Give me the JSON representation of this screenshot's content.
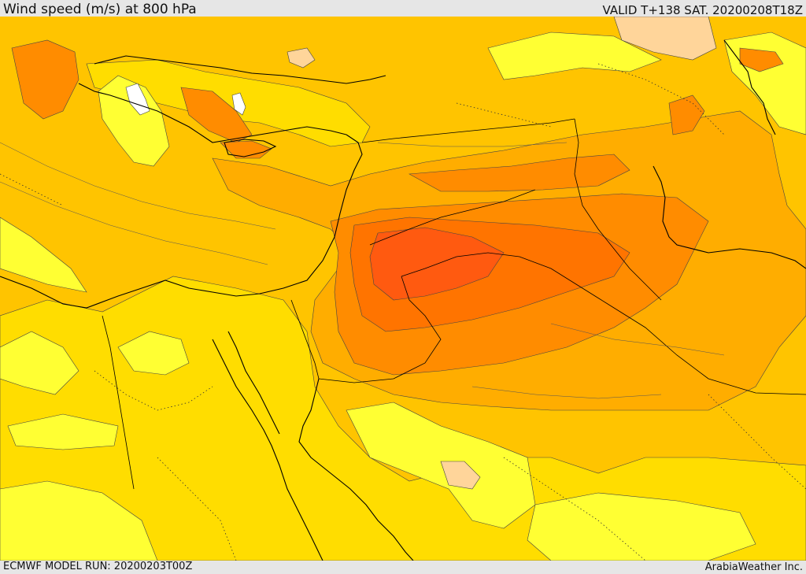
{
  "header": {
    "title": "Wind speed (m/s) at 800 hPa",
    "valid_time": "VALID T+138 SAT. 20200208T18Z"
  },
  "footer": {
    "model_run": "ECMWF MODEL RUN: 20200203T00Z",
    "credit": "ArabiaWeather Inc."
  },
  "map": {
    "field": "wind speed",
    "level": "800 hPa",
    "colors": {
      "light_yellow": "#ffff33",
      "yellow": "#ffdd00",
      "gold": "#ffc400",
      "light_orange": "#ffad00",
      "orange": "#ff8c00",
      "dark_orange": "#ff7400",
      "red_orange": "#ff5a10",
      "tan": "#ffd59a",
      "pale_water": "#ffffff",
      "coastline": "#000000"
    }
  }
}
